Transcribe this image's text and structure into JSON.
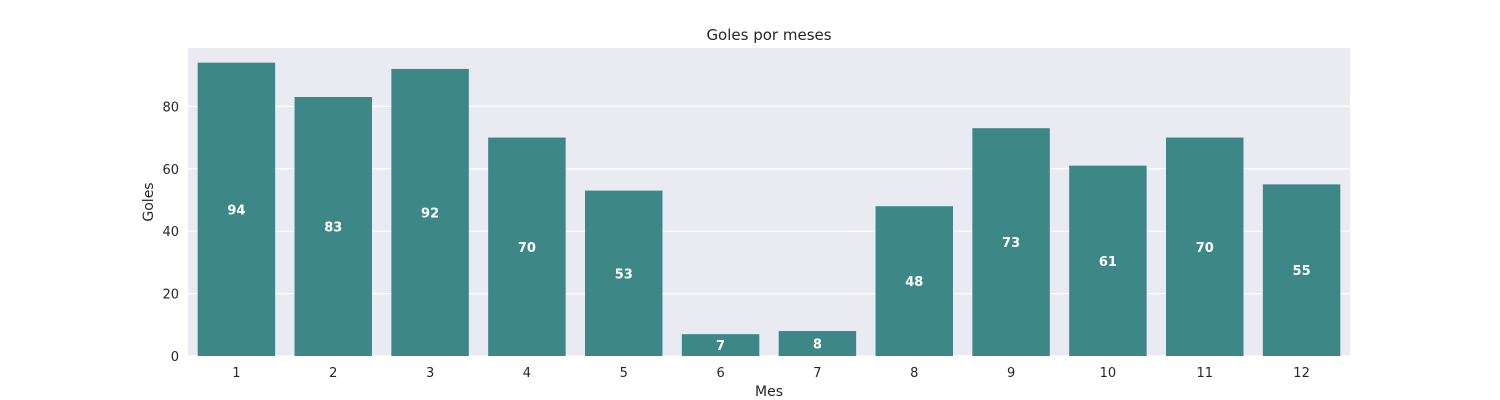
{
  "chart_data": {
    "type": "bar",
    "title": "Goles por meses",
    "xlabel": "Mes",
    "ylabel": "Goles",
    "categories": [
      "1",
      "2",
      "3",
      "4",
      "5",
      "6",
      "7",
      "8",
      "9",
      "10",
      "11",
      "12"
    ],
    "values": [
      94,
      83,
      92,
      70,
      53,
      7,
      8,
      48,
      73,
      61,
      70,
      55
    ],
    "ylim": [
      0,
      98.7
    ],
    "yticks": [
      0,
      20,
      40,
      60,
      80
    ],
    "grid": true,
    "bar_color": "#3d8787",
    "background_color": "#eaeaf2",
    "grid_color": "#ffffff"
  }
}
